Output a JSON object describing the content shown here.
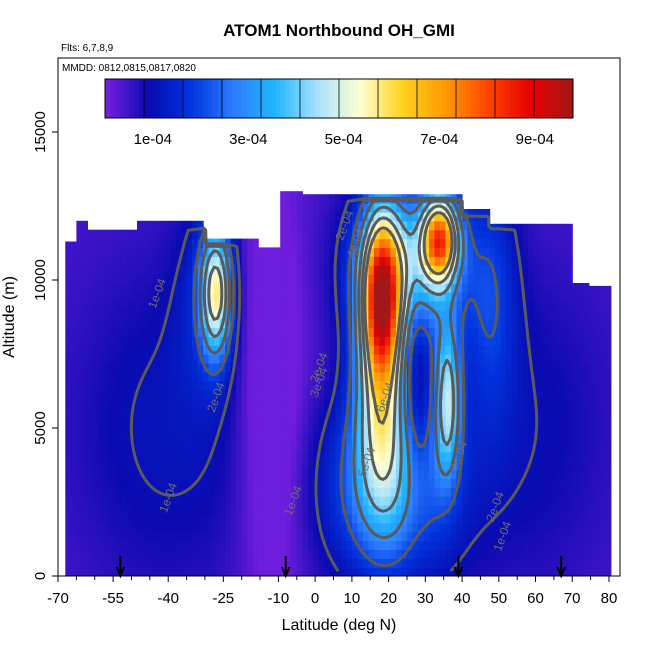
{
  "chart_data": {
    "type": "heatmap",
    "title": "ATOM1 Northbound OH_GMI",
    "annotations": [
      "Flts: 6,7,8,9",
      "MMDD: 0812,0815,0817,0820"
    ],
    "xlabel": "Latitude (deg N)",
    "ylabel": "Altitude (m)",
    "xlim": [
      -70,
      83
    ],
    "ylim": [
      0,
      17500
    ],
    "x_ticks": [
      -70,
      -55,
      -40,
      -25,
      -10,
      0,
      10,
      20,
      30,
      40,
      50,
      60,
      70,
      80
    ],
    "y_ticks": [
      0,
      5000,
      10000,
      15000
    ],
    "colorbar": {
      "range": [
        0,
        0.00098
      ],
      "tick_values": [
        0.0001,
        0.0003,
        0.0005,
        0.0007,
        0.0009
      ],
      "tick_labels": [
        "1e-04",
        "3e-04",
        "5e-04",
        "7e-04",
        "9e-04"
      ],
      "colors": [
        "#7a1fe0",
        "#0a0ab0",
        "#0033dd",
        "#2c7bff",
        "#22b6ff",
        "#a8e2ff",
        "#ffffd0",
        "#ffd21e",
        "#ff9a00",
        "#ff4400",
        "#e80000",
        "#a01818"
      ]
    },
    "contour_labels": [
      {
        "text": "1e-04",
        "lat": -42,
        "alt": 9500
      },
      {
        "text": "1e-04",
        "lat": -39,
        "alt": 2600
      },
      {
        "text": "1e-04",
        "lat": -5,
        "alt": 2500
      },
      {
        "text": "1e-04",
        "lat": 52,
        "alt": 1300
      },
      {
        "text": "2e-04",
        "lat": -26,
        "alt": 6000
      },
      {
        "text": "2e-04",
        "lat": 2,
        "alt": 7000
      },
      {
        "text": "2e-04",
        "lat": 9,
        "alt": 11800
      },
      {
        "text": "2e-04",
        "lat": 50,
        "alt": 2300
      },
      {
        "text": "3e-04",
        "lat": 2,
        "alt": 6500
      },
      {
        "text": "4e-04",
        "lat": 12,
        "alt": 11200
      },
      {
        "text": "5e-04",
        "lat": 15,
        "alt": 3800
      },
      {
        "text": "6e-04",
        "lat": 20,
        "alt": 6000
      },
      {
        "text": "3e-04",
        "lat": 40,
        "alt": 4000
      }
    ],
    "flight_markers_lat": [
      -53,
      -8,
      39,
      67
    ],
    "field_note": "OH mixing ratio curtain: low values (purple/blue) below ~1e-04 at high southern latitudes; local maximum ~7e-04 near -27 deg N at 8-11 km; strongest values ~9e-04 at 15-35 deg N between 8 and 12 km; data columns span about -68 to 80 deg N up to ~13 km"
  }
}
